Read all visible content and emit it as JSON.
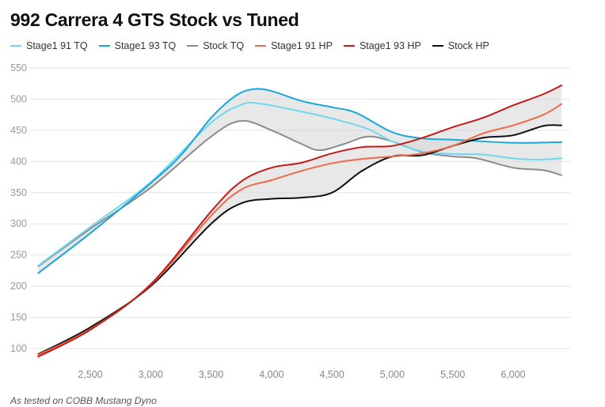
{
  "chart_data": {
    "type": "line",
    "title": "992 Carrera 4 GTS Stock vs Tuned",
    "xlabel": "",
    "ylabel": "",
    "xlim": [
      2070,
      6400
    ],
    "ylim": [
      100,
      550
    ],
    "grid": true,
    "legend_position": "top-left",
    "x_ticks": [
      2500,
      3000,
      3500,
      4000,
      4500,
      5000,
      5500,
      6000
    ],
    "x_tick_labels": [
      "2,500",
      "3,000",
      "3,500",
      "4,000",
      "4,500",
      "5,000",
      "5,500",
      "6,000"
    ],
    "y_ticks": [
      100,
      150,
      200,
      250,
      300,
      350,
      400,
      450,
      500,
      550
    ],
    "y_tick_labels": [
      "100",
      "150",
      "200",
      "250",
      "300",
      "350",
      "400",
      "450",
      "500",
      "550"
    ],
    "series": [
      {
        "name": "Stage1 91 TQ",
        "color": "#6fd8ee",
        "x": [
          2070,
          2500,
          3000,
          3500,
          3750,
          3900,
          4250,
          4500,
          4800,
          5000,
          5250,
          5500,
          5750,
          6000,
          6200,
          6400
        ],
        "values": [
          233,
          295,
          367,
          462,
          491,
          493,
          480,
          469,
          452,
          432,
          416,
          412,
          411,
          405,
          403,
          405
        ]
      },
      {
        "name": "Stage1 93 TQ",
        "color": "#1ba6d8",
        "x": [
          2070,
          2500,
          3000,
          3250,
          3500,
          3700,
          3850,
          4000,
          4250,
          4500,
          4700,
          5000,
          5250,
          5500,
          6000,
          6400
        ],
        "values": [
          221,
          285,
          365,
          410,
          470,
          505,
          516,
          513,
          497,
          487,
          478,
          447,
          437,
          435,
          430,
          431
        ]
      },
      {
        "name": "Stock TQ",
        "color": "#8c8c8c",
        "x": [
          2070,
          2500,
          3000,
          3500,
          3750,
          4000,
          4250,
          4400,
          4600,
          4800,
          5000,
          5250,
          5500,
          5700,
          6000,
          6250,
          6400
        ],
        "values": [
          232,
          292,
          358,
          440,
          465,
          450,
          428,
          418,
          428,
          440,
          432,
          415,
          408,
          405,
          390,
          386,
          378
        ]
      },
      {
        "name": "Stage1 91 HP",
        "color": "#ee6a4a",
        "x": [
          2070,
          2500,
          3000,
          3500,
          3750,
          4000,
          4250,
          4500,
          4750,
          5000,
          5250,
          5500,
          5750,
          6000,
          6250,
          6400
        ],
        "values": [
          90,
          131,
          202,
          313,
          355,
          370,
          385,
          397,
          404,
          408,
          413,
          425,
          445,
          458,
          475,
          492
        ]
      },
      {
        "name": "Stage1 93 HP",
        "color": "#c41a1a",
        "x": [
          2070,
          2500,
          3000,
          3500,
          3750,
          4000,
          4250,
          4500,
          4750,
          5000,
          5250,
          5500,
          5750,
          6000,
          6250,
          6400
        ],
        "values": [
          87,
          130,
          203,
          320,
          368,
          390,
          398,
          413,
          423,
          425,
          438,
          455,
          470,
          490,
          508,
          522
        ]
      },
      {
        "name": "Stock HP",
        "color": "#111111",
        "x": [
          2070,
          2500,
          3000,
          3500,
          3750,
          4000,
          4250,
          4500,
          4750,
          5000,
          5250,
          5500,
          5750,
          6000,
          6250,
          6400
        ],
        "values": [
          91,
          134,
          200,
          300,
          333,
          340,
          342,
          350,
          385,
          408,
          410,
          425,
          438,
          442,
          457,
          458
        ]
      }
    ],
    "fills": [
      {
        "between": [
          "Stage1 93 TQ",
          "Stock TQ"
        ],
        "color": "#d9d9d9"
      },
      {
        "between": [
          "Stage1 93 HP",
          "Stock HP"
        ],
        "color": "#d9d9d9"
      }
    ],
    "annotation": "As tested on COBB Mustang Dyno"
  }
}
